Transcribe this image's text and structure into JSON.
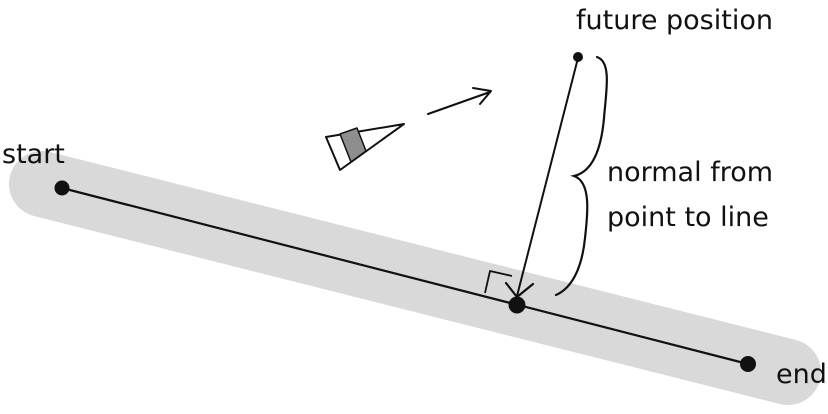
{
  "labels": {
    "start": "start",
    "end": "end",
    "future_position": "future position",
    "normal_line1": "normal from",
    "normal_line2": "point to line"
  },
  "colors": {
    "ink": "#111111",
    "path_band": "#d9d9d9",
    "vehicle_shade": "#8e8e8e",
    "background": "#ffffff"
  },
  "icons": {
    "vehicle": "vehicle-icon",
    "motion": "arrow-icon",
    "brace": "brace-icon",
    "right_angle": "right-angle-marker-icon"
  }
}
